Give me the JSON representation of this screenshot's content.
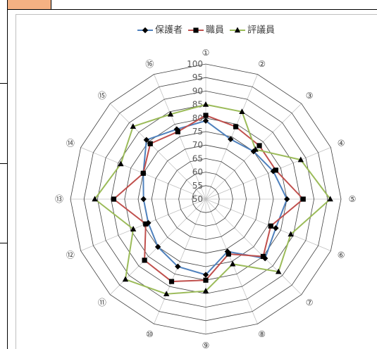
{
  "layout_colors": {
    "header_cell": "#f4b183",
    "frame_border": "#bfbfbf"
  },
  "chart_data": {
    "type": "radar",
    "legend": "top",
    "grid": true,
    "categories": [
      "①",
      "②",
      "③",
      "④",
      "⑤",
      "⑥",
      "⑦",
      "⑧",
      "⑨",
      "⑩",
      "⑪",
      "⑫",
      "⑬",
      "⑭",
      "⑮",
      "⑯"
    ],
    "rlim": [
      50,
      100
    ],
    "r_ticks": [
      50,
      55,
      60,
      65,
      70,
      75,
      80,
      85,
      90,
      95,
      100
    ],
    "series": [
      {
        "name": "保護者",
        "marker": "diamond",
        "color": "#4f81bd",
        "values": [
          79,
          74,
          75,
          77,
          80,
          78,
          81,
          71,
          78,
          77,
          75,
          73,
          73,
          75,
          81,
          78
        ]
      },
      {
        "name": "職員",
        "marker": "square",
        "color": "#c0504d",
        "values": [
          81,
          79,
          78,
          78,
          86,
          76,
          80,
          72,
          80,
          83,
          82,
          74,
          84,
          75,
          79,
          77
        ]
      },
      {
        "name": "評議員",
        "marker": "triangle",
        "color": "#9bbb59",
        "values": [
          85,
          85,
          76,
          88,
          96,
          84,
          88,
          76,
          84,
          88,
          92,
          79,
          91,
          84,
          88,
          84
        ]
      }
    ],
    "colors": {
      "ring": "#404040",
      "spoke": "#bfbfbf",
      "marker": "#000000",
      "label": "#595959"
    }
  }
}
